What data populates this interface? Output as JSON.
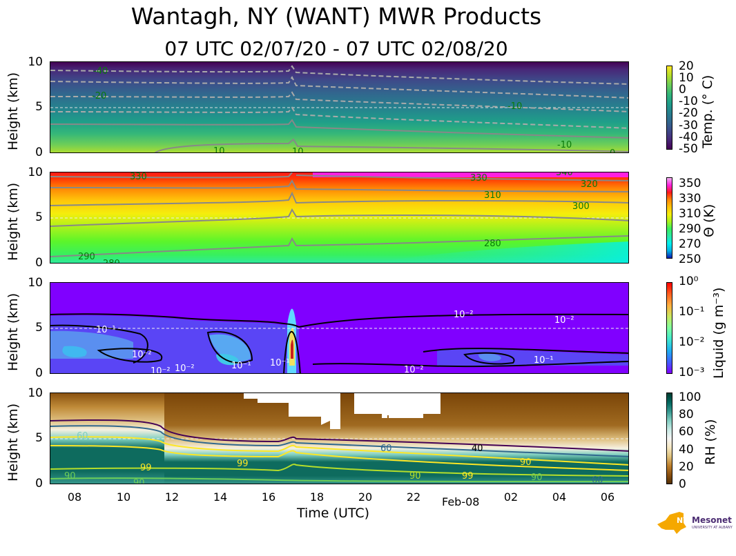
{
  "title": "Wantagh, NY (WANT) MWR Products",
  "subtitle": "07 UTC 02/07/20 - 07 UTC 02/08/20",
  "x_axis": {
    "label": "Time (UTC)",
    "ticks": [
      "08",
      "10",
      "12",
      "14",
      "16",
      "18",
      "20",
      "22",
      "02",
      "04",
      "06"
    ],
    "date_label": "Feb-08"
  },
  "y_axis": {
    "label": "Height (km)",
    "ticks": [
      "0",
      "5",
      "10"
    ]
  },
  "panels": [
    {
      "id": "temperature",
      "colorbar_label": "Temp. (° C)",
      "colorbar_ticks": [
        "20",
        "10",
        "0",
        "-10",
        "-20",
        "-30",
        "-40",
        "-50"
      ],
      "contour_labels": [
        "-40",
        "-20",
        "10",
        "10",
        "-10",
        "0",
        "-10",
        "-30"
      ]
    },
    {
      "id": "theta",
      "colorbar_label": "Θ (K)",
      "colorbar_ticks": [
        "350",
        "330",
        "310",
        "290",
        "270",
        "250"
      ],
      "contour_labels": [
        "330",
        "330",
        "320",
        "340",
        "310",
        "300",
        "280",
        "290",
        "280"
      ]
    },
    {
      "id": "liquid",
      "colorbar_label": "Liquid (g m⁻³)",
      "colorbar_ticks": [
        "10⁰",
        "10⁻¹",
        "10⁻²",
        "10⁻³"
      ],
      "contour_labels": [
        "10⁻¹",
        "10⁻²",
        "10⁻²",
        "10⁻¹",
        "10⁻¹",
        "10⁻²",
        "10⁻²",
        "10⁻²",
        "10⁻¹",
        "10⁻²",
        "10⁻¹",
        "10⁻²"
      ]
    },
    {
      "id": "rh",
      "colorbar_label": "RH (%)",
      "colorbar_ticks": [
        "100",
        "80",
        "60",
        "40",
        "20",
        "0"
      ],
      "contour_labels": [
        "40",
        "60",
        "90",
        "99",
        "90",
        "99",
        "60",
        "90",
        "60",
        "99",
        "90",
        "90"
      ]
    }
  ],
  "logo": {
    "text": "NYS Mesonet",
    "subtext": "UNIVERSITY AT ALBANY"
  },
  "chart_data": [
    {
      "type": "heatmap",
      "title": "",
      "variable": "Temperature (°C)",
      "x_range_utc": [
        "07 02/07/20",
        "07 02/08/20"
      ],
      "ylim_km": [
        0,
        10
      ],
      "zlim": [
        -50,
        20
      ],
      "colormap": "viridis",
      "contour_levels_labeled": [
        -40,
        -30,
        -20,
        -10,
        0,
        10
      ],
      "surface_temperature_c": 10,
      "temperature_at_5km_c": -20,
      "temperature_at_10km_c": -50
    },
    {
      "type": "heatmap",
      "title": "",
      "variable": "Potential temperature Θ (K)",
      "x_range_utc": [
        "07 02/07/20",
        "07 02/08/20"
      ],
      "ylim_km": [
        0,
        10
      ],
      "zlim": [
        250,
        350
      ],
      "colormap": "gist_ncar",
      "contour_levels_labeled": [
        280,
        290,
        300,
        310,
        320,
        330,
        340
      ],
      "surface_theta_k": 280,
      "theta_at_10km_k": 340
    },
    {
      "type": "heatmap",
      "title": "",
      "variable": "Liquid (g m^-3)",
      "x_range_utc": [
        "07 02/07/20",
        "07 02/08/20"
      ],
      "ylim_km": [
        0,
        10
      ],
      "zlim": [
        0.001,
        1
      ],
      "log_scale": true,
      "colormap": "rainbow",
      "contour_levels_labeled": [
        0.01,
        0.1
      ],
      "peak_time_utc": "17",
      "peak_height_km": 2.5,
      "peak_value": 1
    },
    {
      "type": "heatmap",
      "title": "",
      "variable": "RH (%)",
      "x_range_utc": [
        "07 02/07/20",
        "07 02/08/20"
      ],
      "ylim_km": [
        0,
        10
      ],
      "zlim": [
        0,
        100
      ],
      "colormap": "BrBG",
      "contour_levels_labeled": [
        40,
        60,
        90,
        99
      ],
      "moist_layer_top_km_early": 5.5,
      "moist_layer_top_km_late": 3.5
    }
  ]
}
